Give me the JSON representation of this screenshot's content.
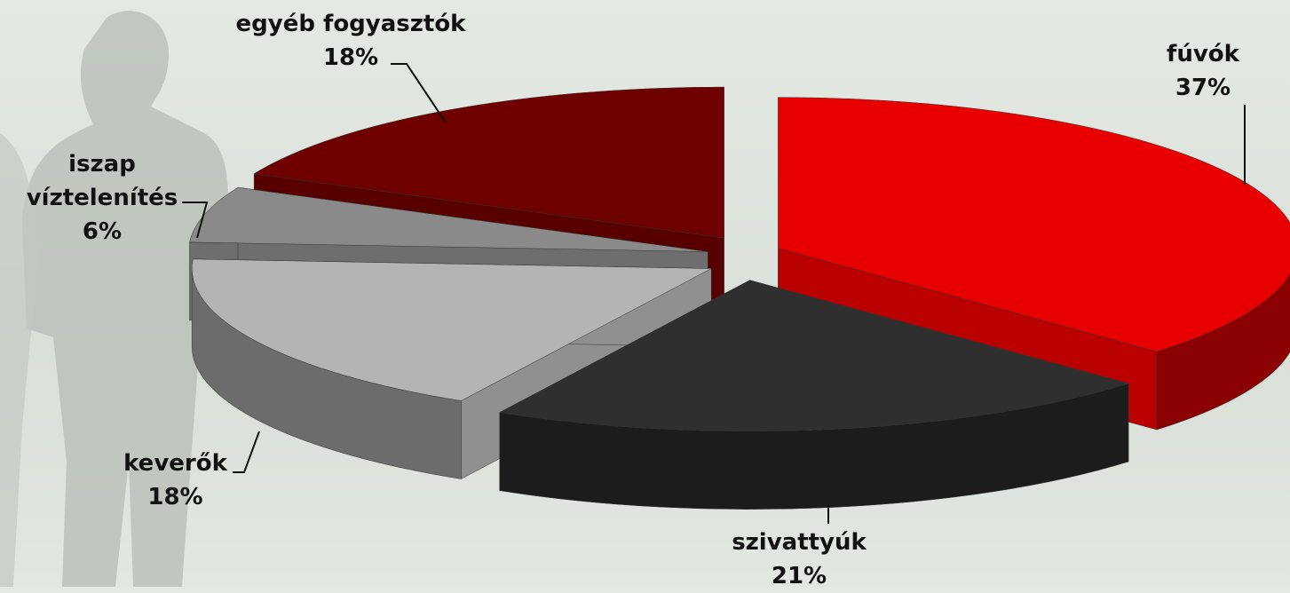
{
  "chart_data": {
    "type": "pie",
    "categories": [
      "fúvók",
      "szivattyúk",
      "keverők",
      "iszap víztelenítés",
      "egyéb fogyasztók"
    ],
    "values": [
      37,
      21,
      18,
      6,
      18
    ],
    "value_labels": [
      "37%",
      "21%",
      "18%",
      "6%",
      "18%"
    ],
    "colors": [
      "#e80000",
      "#2f2f2f",
      "#b4b4b4",
      "#8a8a8a",
      "#6e0000"
    ]
  }
}
